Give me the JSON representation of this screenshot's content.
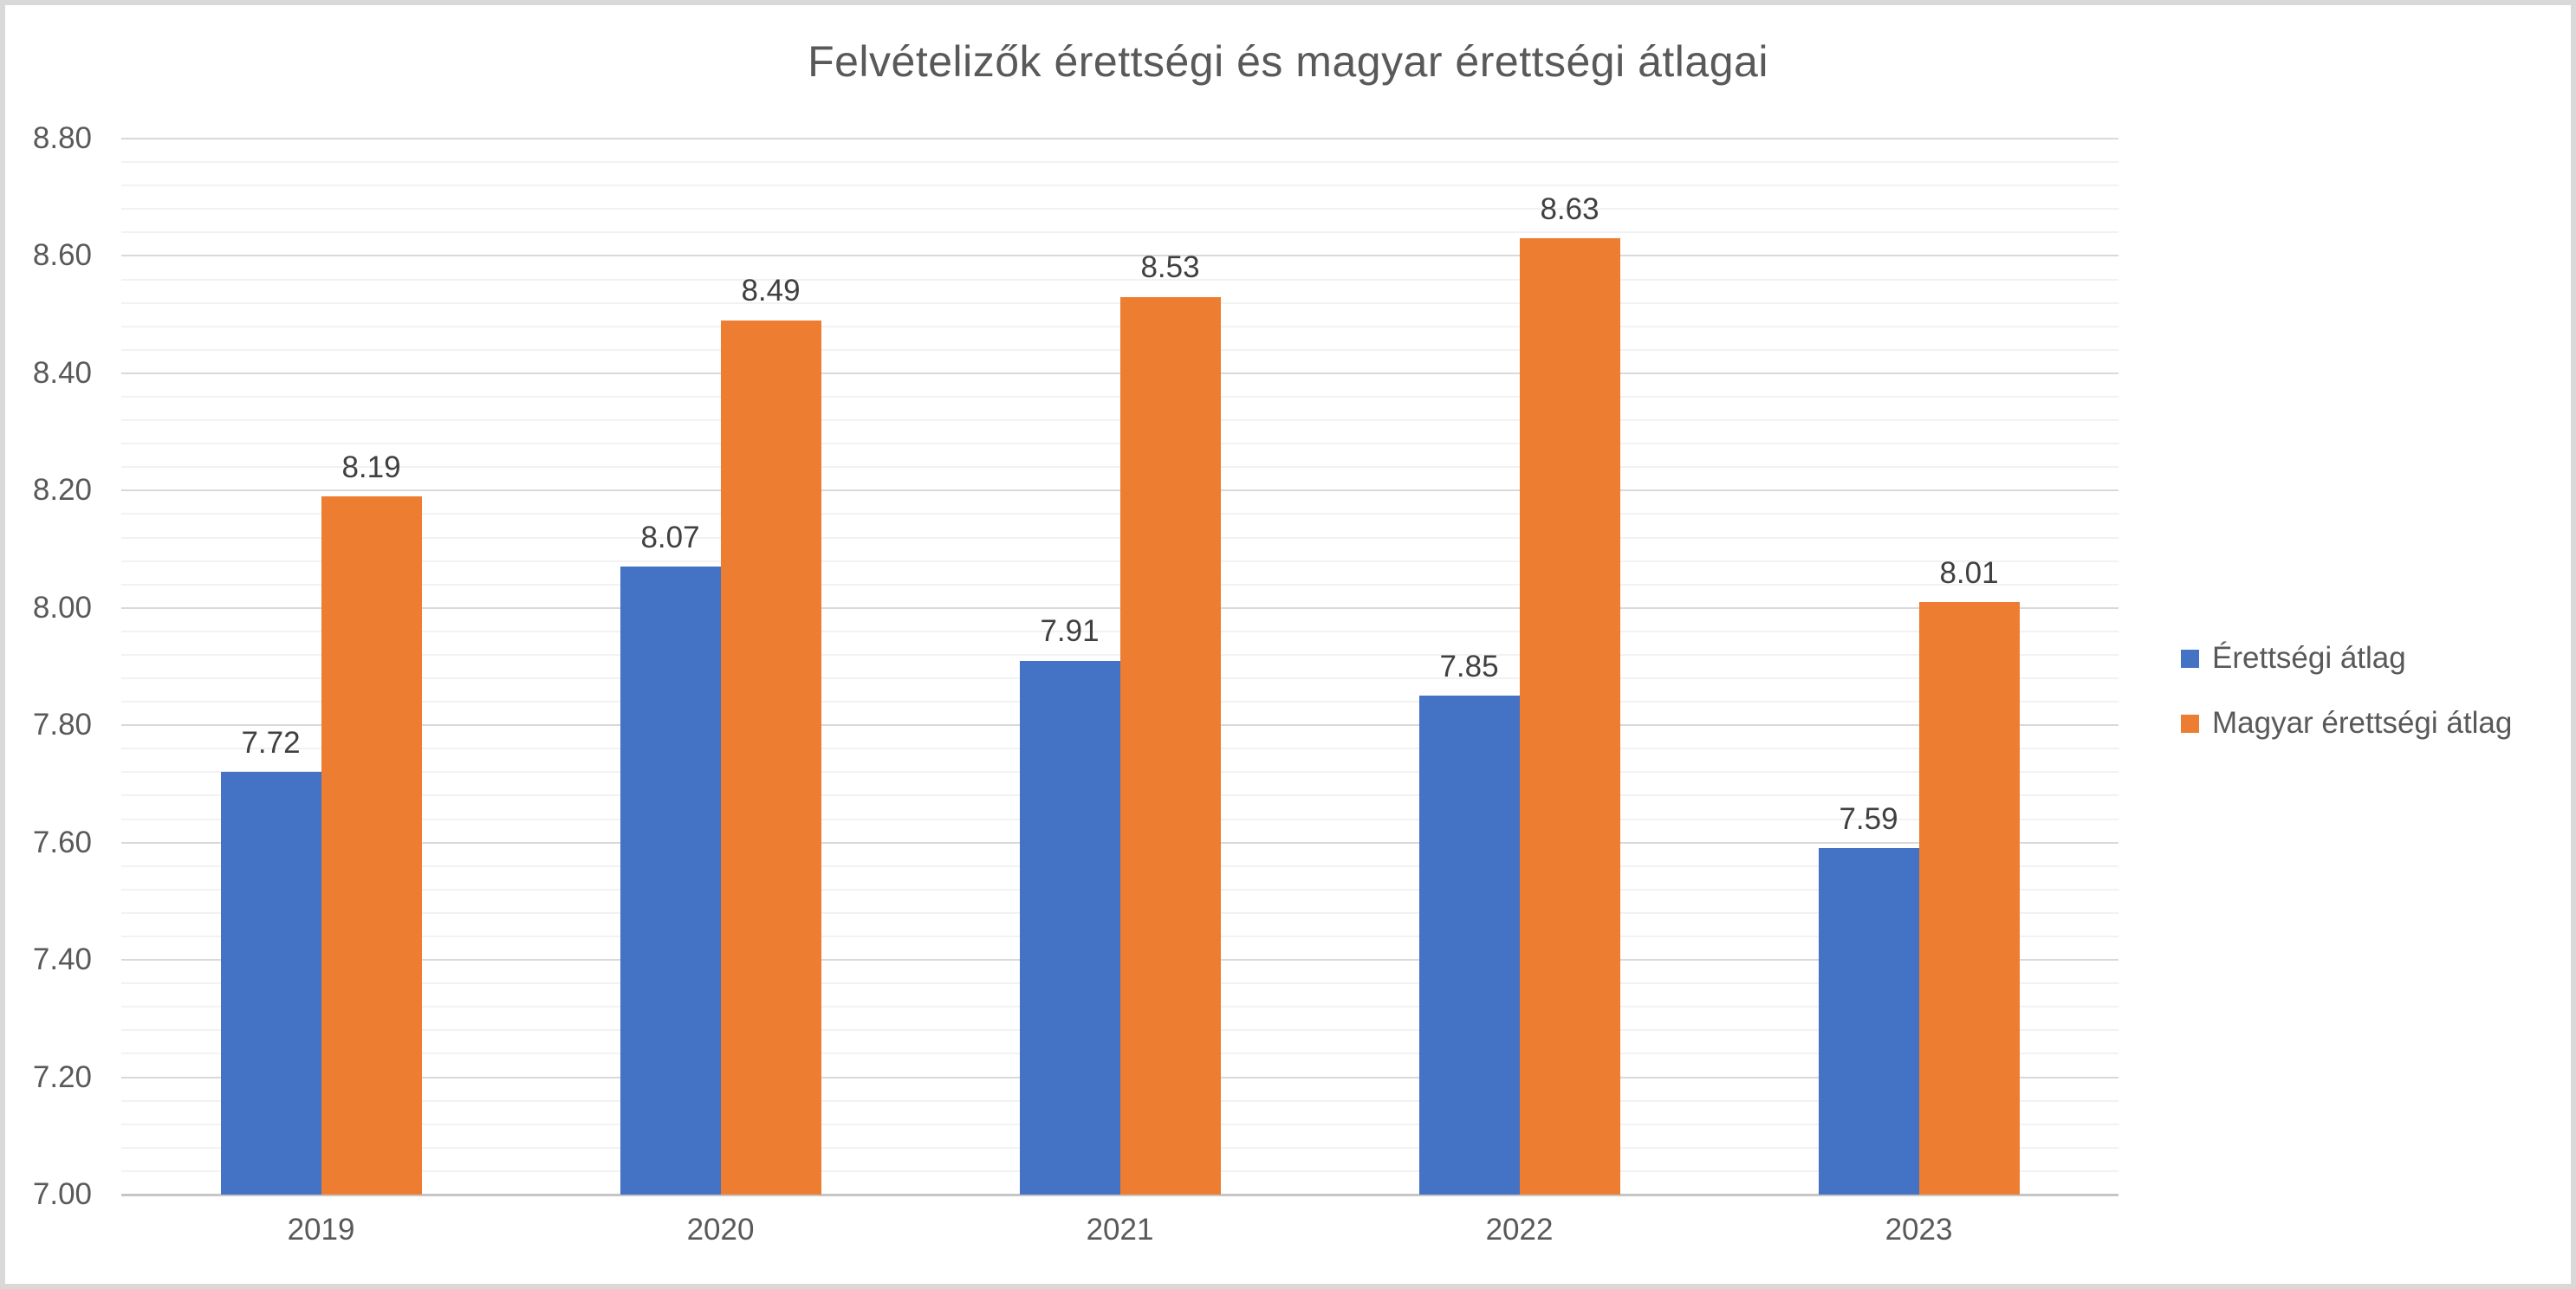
{
  "title": "Felvételizők érettségi és magyar érettségi átlagai",
  "chart_data": {
    "type": "bar",
    "title": "Felvételizők érettségi és magyar érettségi átlagai",
    "categories": [
      "2019",
      "2020",
      "2021",
      "2022",
      "2023"
    ],
    "series": [
      {
        "name": "Érettségi átlag",
        "color": "#4472C4",
        "values": [
          7.72,
          8.07,
          7.91,
          7.85,
          7.59
        ],
        "data_labels": [
          "7.72",
          "8.07",
          "7.91",
          "7.85",
          "7.59"
        ]
      },
      {
        "name": "Magyar érettségi átlag",
        "color": "#ED7D31",
        "values": [
          8.19,
          8.49,
          8.53,
          8.63,
          8.01
        ],
        "data_labels": [
          "8.19",
          "8.49",
          "8.53",
          "8.63",
          "8.01"
        ]
      }
    ],
    "ylim": [
      7.0,
      8.8
    ],
    "y_major_unit": 0.2,
    "y_minor_unit": 0.04,
    "y_tick_labels": [
      "7.00",
      "7.20",
      "7.40",
      "7.60",
      "7.80",
      "8.00",
      "8.20",
      "8.40",
      "8.60",
      "8.80"
    ],
    "xlabel": "",
    "ylabel": "",
    "grid": "on",
    "legend_position": "right-middle",
    "colors": {
      "grid_major": "#D9D9D9",
      "grid_minor": "#F2F2F2",
      "axis_baseline": "#C6C6C6",
      "text": "#595959",
      "data_label_text": "#404040",
      "frame_border": "#D9D9D9",
      "background": "#FFFFFF"
    }
  }
}
